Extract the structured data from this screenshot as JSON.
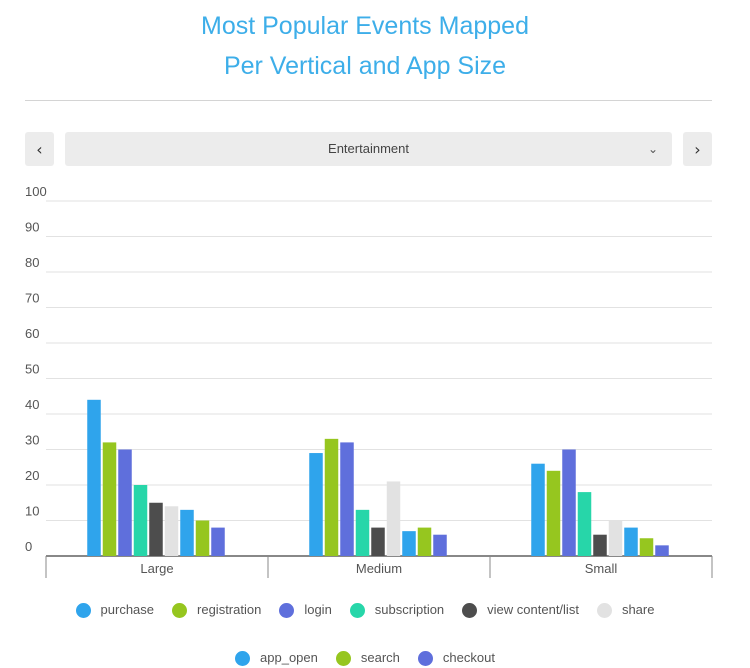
{
  "page": {
    "title_line1": "Most Popular Events Mapped",
    "title_line2": "Per Vertical and App Size"
  },
  "selector": {
    "prev_icon": "chevron-left-icon",
    "prev_glyph": "‹",
    "next_icon": "chevron-right-icon",
    "next_glyph": "›",
    "value": "Entertainment",
    "dropdown_glyph": "⌄"
  },
  "colors": {
    "title": "#3daee9",
    "grid": "#e2e2e2",
    "axis": "#888888",
    "tick_text": "#555555"
  },
  "chart_data": {
    "type": "bar",
    "title": "Most Popular Events Mapped Per Vertical and App Size",
    "xlabel": "",
    "ylabel": "",
    "ylim": [
      0,
      100
    ],
    "yticks": [
      0,
      10,
      20,
      30,
      40,
      50,
      60,
      70,
      80,
      90,
      100
    ],
    "grid": true,
    "legend_position": "bottom",
    "categories": [
      "Large",
      "Medium",
      "Small"
    ],
    "series": [
      {
        "name": "purchase",
        "color": "#2fa4ec",
        "values": [
          44,
          29,
          26
        ]
      },
      {
        "name": "registration",
        "color": "#96c61f",
        "values": [
          32,
          33,
          24
        ]
      },
      {
        "name": "login",
        "color": "#5f6fdc",
        "values": [
          30,
          32,
          30
        ]
      },
      {
        "name": "subscription",
        "color": "#27d6a9",
        "values": [
          20,
          13,
          18
        ]
      },
      {
        "name": "view content/list",
        "color": "#4d4d4d",
        "values": [
          15,
          8,
          6
        ]
      },
      {
        "name": "share",
        "color": "#e2e2e2",
        "values": [
          14,
          21,
          10
        ]
      },
      {
        "name": "app_open",
        "color": "#2fa4ec",
        "values": [
          13,
          7,
          8
        ]
      },
      {
        "name": "search",
        "color": "#96c61f",
        "values": [
          10,
          8,
          5
        ]
      },
      {
        "name": "checkout",
        "color": "#5f6fdc",
        "values": [
          8,
          6,
          3
        ]
      }
    ]
  }
}
